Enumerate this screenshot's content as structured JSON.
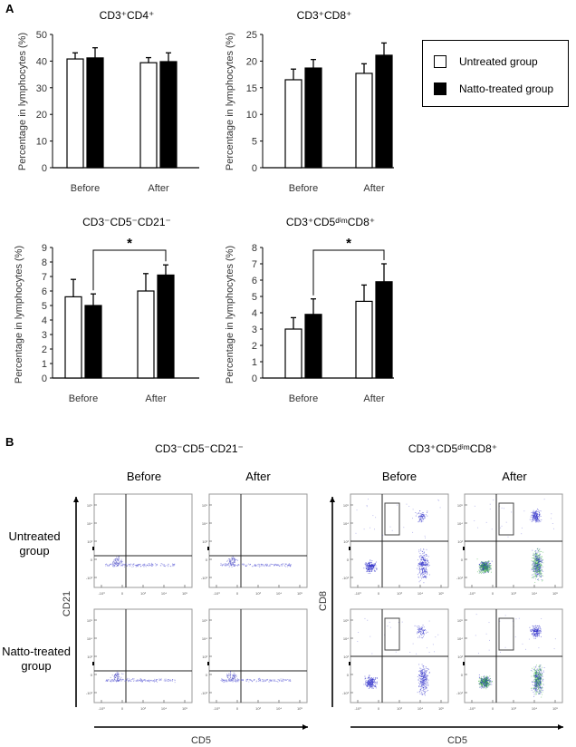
{
  "panel_a_label": "A",
  "panel_b_label": "B",
  "legend": {
    "items": [
      {
        "label": "Untreated group",
        "color": "#ffffff"
      },
      {
        "label": "Natto-treated group",
        "color": "#000000"
      }
    ]
  },
  "chart_data": [
    {
      "type": "bar",
      "title": "CD3⁺CD4⁺",
      "ylabel": "Percentage in lymphocytes (%)",
      "xlabel": "",
      "categories": [
        "Before",
        "After"
      ],
      "ylim": [
        0,
        50
      ],
      "yticks": [
        0,
        10,
        20,
        30,
        40,
        50
      ],
      "series": [
        {
          "name": "Untreated group",
          "values": [
            40.8,
            39.4
          ],
          "errors": [
            2.3,
            1.9
          ]
        },
        {
          "name": "Natto-treated group",
          "values": [
            41.2,
            39.8
          ],
          "errors": [
            3.8,
            3.3
          ]
        }
      ],
      "significance": null
    },
    {
      "type": "bar",
      "title": "CD3⁺CD8⁺",
      "ylabel": "Percentage in lymphocytes (%)",
      "xlabel": "",
      "categories": [
        "Before",
        "After"
      ],
      "ylim": [
        0,
        25
      ],
      "yticks": [
        0,
        5,
        10,
        15,
        20,
        25
      ],
      "series": [
        {
          "name": "Untreated group",
          "values": [
            16.5,
            17.7
          ],
          "errors": [
            2.0,
            1.8
          ]
        },
        {
          "name": "Natto-treated group",
          "values": [
            18.7,
            21.1
          ],
          "errors": [
            1.6,
            2.3
          ]
        }
      ],
      "significance": null
    },
    {
      "type": "bar",
      "title": "CD3⁻CD5⁻CD21⁻",
      "ylabel": "Percentage in lymphocytes (%)",
      "xlabel": "",
      "categories": [
        "Before",
        "After"
      ],
      "ylim": [
        0,
        9
      ],
      "yticks": [
        0,
        1,
        2,
        3,
        4,
        5,
        6,
        7,
        8,
        9
      ],
      "series": [
        {
          "name": "Untreated group",
          "values": [
            5.6,
            6.0
          ],
          "errors": [
            1.2,
            1.2
          ]
        },
        {
          "name": "Natto-treated group",
          "values": [
            5.0,
            7.1
          ],
          "errors": [
            0.8,
            0.7
          ]
        }
      ],
      "significance": {
        "label": "*",
        "between": "Natto-treated group Before vs After"
      }
    },
    {
      "type": "bar",
      "title": "CD3⁺CD5ᵈⁱᵐCD8⁺",
      "ylabel": "Percentage in lymphocytes (%)",
      "xlabel": "",
      "categories": [
        "Before",
        "After"
      ],
      "ylim": [
        0,
        8
      ],
      "yticks": [
        0,
        1,
        2,
        3,
        4,
        5,
        6,
        7,
        8
      ],
      "series": [
        {
          "name": "Untreated group",
          "values": [
            3.0,
            4.7
          ],
          "errors": [
            0.7,
            1.0
          ]
        },
        {
          "name": "Natto-treated group",
          "values": [
            3.9,
            5.9
          ],
          "errors": [
            0.95,
            1.1
          ]
        }
      ],
      "significance": {
        "label": "*",
        "between": "Natto-treated group Before vs After"
      }
    }
  ],
  "flow": {
    "groups": [
      {
        "title": "CD3⁻CD5⁻CD21⁻",
        "x_axis": "CD5",
        "y_axis": "CD21",
        "gate_box": false
      },
      {
        "title": "CD3⁺CD5ᵈⁱᵐCD8⁺",
        "x_axis": "CD5",
        "y_axis": "CD8",
        "gate_box": true
      }
    ],
    "columns": [
      "Before",
      "After"
    ],
    "rows": [
      "Untreated\ngroup",
      "Natto-treated\ngroup"
    ],
    "row_lines": [
      [
        "Untreated",
        "group"
      ],
      [
        "Natto-treated",
        "group"
      ]
    ],
    "yticks": [
      "10⁵",
      "10⁴",
      "10³",
      "0",
      "-10³"
    ],
    "xticks": [
      "-10³",
      "0",
      "10³",
      "10⁴",
      "10⁵"
    ]
  }
}
